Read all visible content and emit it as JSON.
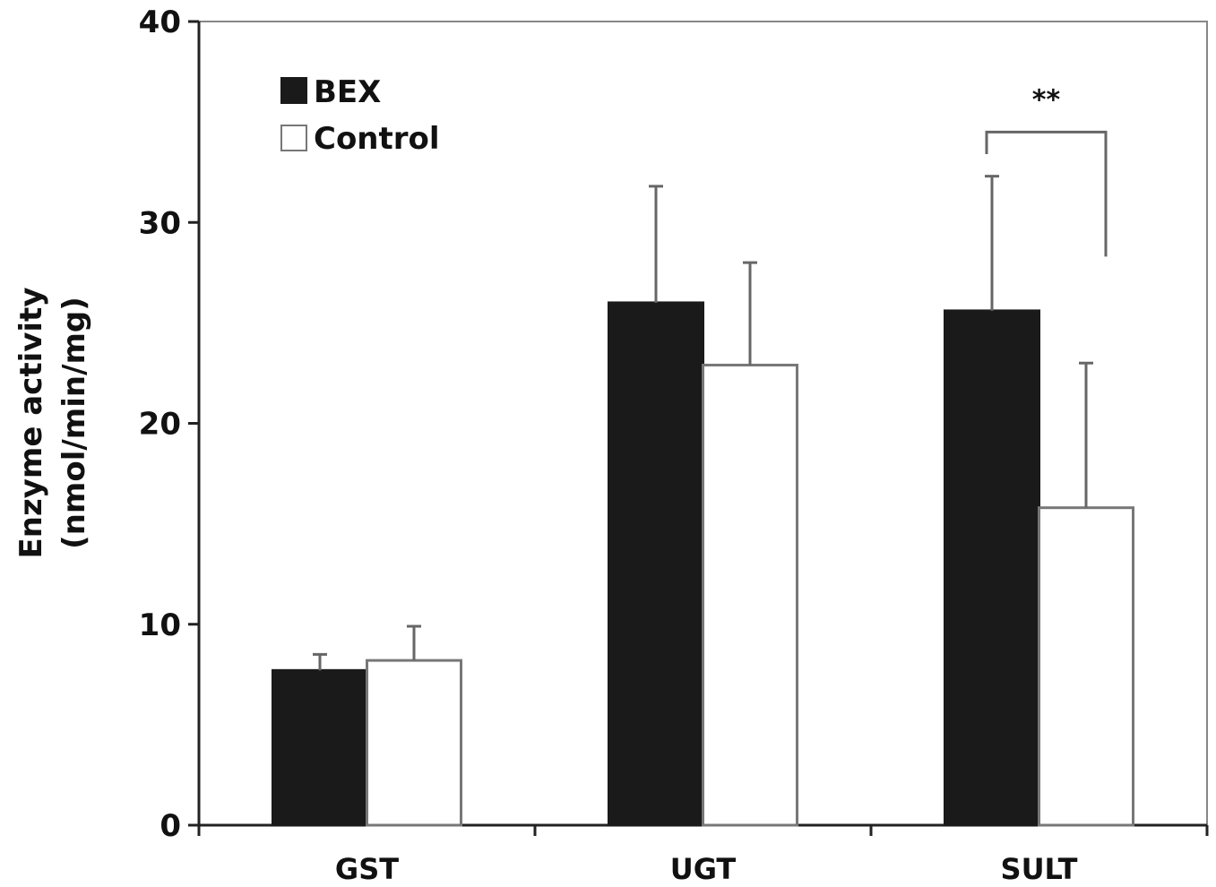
{
  "chart_data": {
    "type": "bar",
    "title": "",
    "xlabel": "",
    "ylabel_lines": [
      "Enzyme activity",
      "(nmol/min/mg)"
    ],
    "ylim": [
      0,
      40
    ],
    "yticks": [
      "0",
      "10",
      "20",
      "30",
      "40"
    ],
    "categories": [
      "GST",
      "UGT",
      "SULT"
    ],
    "series": [
      {
        "name": "BEX",
        "color": "#1a1a1a",
        "values": [
          7.7,
          26.0,
          25.6
        ],
        "errors": [
          0.8,
          5.8,
          6.7
        ]
      },
      {
        "name": "Control",
        "color": "#ffffff",
        "values": [
          8.2,
          22.9,
          15.8
        ],
        "errors": [
          1.7,
          5.1,
          7.2
        ]
      }
    ],
    "legend": {
      "placement": "top-left",
      "entries": [
        "BEX",
        "Control"
      ]
    },
    "grid": false,
    "annotations": [
      {
        "category": "SULT",
        "text": "**",
        "bracket_y": 34.5
      }
    ]
  }
}
